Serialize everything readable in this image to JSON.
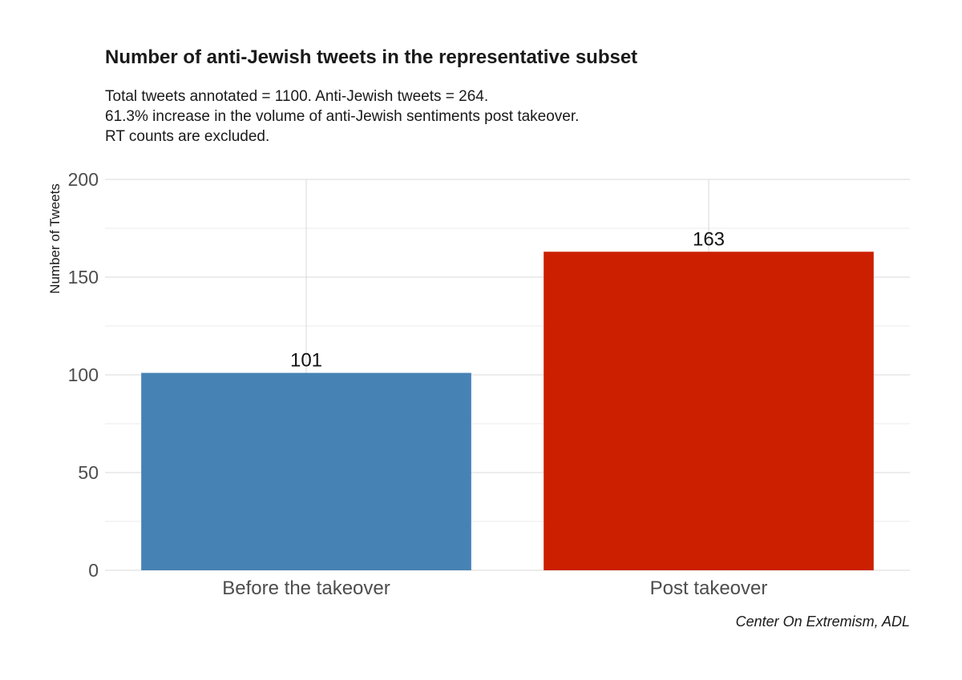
{
  "chart_data": {
    "type": "bar",
    "title": "Number of anti-Jewish tweets in the representative subset",
    "subtitle": [
      "Total tweets annotated = 1100. Anti-Jewish tweets = 264.",
      "61.3% increase in the volume of anti-Jewish sentiments post takeover.",
      "RT counts are excluded."
    ],
    "categories": [
      "Before the takeover",
      "Post takeover"
    ],
    "values": [
      101,
      163
    ],
    "data_labels": [
      "101",
      "163"
    ],
    "colors": [
      "#4682b4",
      "#cc1f00"
    ],
    "xlabel": "",
    "ylabel": "Number of Tweets",
    "ylim": [
      0,
      200
    ],
    "yticks": [
      "0",
      "50",
      "100",
      "150",
      "200"
    ],
    "grid": true,
    "legend": "none",
    "caption": "Center On Extremism, ADL"
  }
}
